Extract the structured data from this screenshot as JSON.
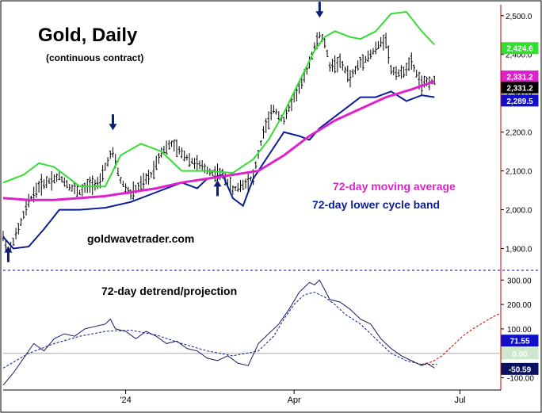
{
  "title": "Gold, Daily",
  "subtitle": "(continuous contract)",
  "watermark": "goldwavetrader.com",
  "colors": {
    "upper_band": "#33dd33",
    "moving_average": "#dd22cc",
    "lower_band": "#0a1e96",
    "price": "#000000",
    "detrend": "#0a1e96",
    "projection": "#cc0000",
    "divider": "#000080",
    "arrow": "#0a1e7a",
    "right_axis": "#cc0000"
  },
  "annotations": {
    "ma_label": "72-day moving average",
    "lower_band_label": "72-day lower cycle band",
    "detrend_label": "72-day detrend/projection"
  },
  "x_axis": {
    "ticks": [
      {
        "label": "'24",
        "day": 48
      },
      {
        "label": "Apr",
        "day": 114
      },
      {
        "label": "Jul",
        "day": 179
      }
    ]
  },
  "badges": {
    "upper": {
      "value": "2,424.6",
      "bg": "#33dd33",
      "fg": "#ffffff"
    },
    "ma": {
      "value": "2,331.2",
      "bg": "#dd22cc",
      "fg": "#ffffff"
    },
    "close": {
      "value": "2,331.2",
      "bg": "#000000",
      "fg": "#ffffff"
    },
    "lower": {
      "value": "2,289.5",
      "bg": "#1010cc",
      "fg": "#ffffff"
    },
    "upper_box_value": "100.00",
    "detrend_value": "71.55",
    "zero_value": "0.00",
    "low_value": "-50.59"
  },
  "chart_data": [
    {
      "type": "line",
      "name": "price_panel",
      "ylim": [
        1850,
        2520
      ],
      "y_ticks": [
        "1,900.0",
        "2,000.0",
        "2,100.0",
        "2,200.0",
        "2,300.0",
        "2,400.0",
        "2,500.0"
      ],
      "y_tick_values": [
        1900,
        2000,
        2100,
        2200,
        2300,
        2400,
        2500
      ],
      "xlim": [
        0,
        195
      ],
      "price_anchors": [
        [
          0,
          1930
        ],
        [
          2,
          1890
        ],
        [
          6,
          1950
        ],
        [
          10,
          2020
        ],
        [
          14,
          2060
        ],
        [
          18,
          2075
        ],
        [
          22,
          2085
        ],
        [
          26,
          2060
        ],
        [
          30,
          2045
        ],
        [
          34,
          2065
        ],
        [
          38,
          2070
        ],
        [
          40,
          2110
        ],
        [
          42,
          2140
        ],
        [
          43,
          2145
        ],
        [
          46,
          2075
        ],
        [
          50,
          2040
        ],
        [
          54,
          2065
        ],
        [
          58,
          2090
        ],
        [
          62,
          2150
        ],
        [
          66,
          2170
        ],
        [
          70,
          2145
        ],
        [
          74,
          2125
        ],
        [
          78,
          2110
        ],
        [
          82,
          2095
        ],
        [
          86,
          2090
        ],
        [
          90,
          2050
        ],
        [
          94,
          2065
        ],
        [
          98,
          2085
        ],
        [
          102,
          2200
        ],
        [
          106,
          2260
        ],
        [
          110,
          2230
        ],
        [
          114,
          2290
        ],
        [
          118,
          2340
        ],
        [
          122,
          2420
        ],
        [
          124,
          2450
        ],
        [
          126,
          2430
        ],
        [
          128,
          2370
        ],
        [
          132,
          2380
        ],
        [
          136,
          2340
        ],
        [
          140,
          2380
        ],
        [
          144,
          2400
        ],
        [
          148,
          2430
        ],
        [
          150,
          2440
        ],
        [
          152,
          2360
        ],
        [
          156,
          2350
        ],
        [
          160,
          2380
        ],
        [
          164,
          2320
        ],
        [
          166,
          2330
        ],
        [
          169,
          2331
        ]
      ],
      "series": [
        {
          "name": "72-day upper cycle band",
          "key": "upper",
          "x": [
            0,
            8,
            14,
            20,
            30,
            40,
            46,
            54,
            62,
            70,
            80,
            90,
            98,
            104,
            110,
            116,
            122,
            126,
            130,
            136,
            140,
            146,
            152,
            158,
            164,
            169
          ],
          "values": [
            2070,
            2090,
            2120,
            2110,
            2060,
            2060,
            2140,
            2170,
            2150,
            2100,
            2100,
            2095,
            2130,
            2180,
            2250,
            2330,
            2410,
            2445,
            2460,
            2445,
            2440,
            2460,
            2505,
            2510,
            2460,
            2425
          ]
        },
        {
          "name": "72-day moving average",
          "key": "ma",
          "x": [
            0,
            10,
            20,
            30,
            40,
            50,
            60,
            70,
            80,
            90,
            100,
            110,
            120,
            130,
            140,
            150,
            160,
            169
          ],
          "values": [
            2030,
            2025,
            2025,
            2030,
            2035,
            2045,
            2055,
            2070,
            2080,
            2090,
            2100,
            2140,
            2190,
            2230,
            2260,
            2290,
            2310,
            2331
          ]
        },
        {
          "name": "72-day lower cycle band",
          "key": "lower",
          "x": [
            0,
            4,
            10,
            16,
            22,
            30,
            40,
            50,
            60,
            70,
            76,
            80,
            86,
            90,
            94,
            98,
            104,
            110,
            116,
            120,
            124,
            130,
            136,
            140,
            146,
            152,
            158,
            164,
            169
          ],
          "values": [
            1930,
            1900,
            1905,
            1950,
            2000,
            2000,
            2005,
            2020,
            2045,
            2070,
            2055,
            2080,
            2090,
            2030,
            2010,
            2080,
            2140,
            2200,
            2190,
            2180,
            2210,
            2240,
            2270,
            2290,
            2290,
            2305,
            2280,
            2295,
            2290
          ]
        }
      ],
      "markers": [
        {
          "type": "arrow_up",
          "x": 2,
          "y": 1865
        },
        {
          "type": "arrow_down",
          "x": 43,
          "y": 2205
        },
        {
          "type": "arrow_up",
          "x": 84,
          "y": 2035
        },
        {
          "type": "arrow_down",
          "x": 124,
          "y": 2495
        }
      ]
    },
    {
      "type": "line",
      "name": "detrend_panel",
      "ylim": [
        -150,
        330
      ],
      "y_ticks": [
        "-100.00",
        "100.00",
        "200.00",
        "300.00"
      ],
      "y_tick_values": [
        -100,
        100,
        200,
        300
      ],
      "zero_line": 0,
      "series": [
        {
          "name": "72-day detrend",
          "key": "detrend",
          "x": [
            0,
            4,
            8,
            12,
            16,
            20,
            24,
            28,
            32,
            36,
            40,
            42,
            44,
            48,
            52,
            56,
            60,
            64,
            68,
            72,
            76,
            80,
            84,
            88,
            92,
            96,
            100,
            104,
            108,
            112,
            116,
            118,
            120,
            122,
            124,
            126,
            128,
            132,
            136,
            140,
            144,
            148,
            152,
            156,
            160,
            164,
            166,
            169
          ],
          "values": [
            -130,
            -80,
            -20,
            40,
            10,
            60,
            80,
            70,
            100,
            110,
            120,
            140,
            100,
            90,
            60,
            90,
            70,
            40,
            50,
            20,
            10,
            -20,
            -30,
            -10,
            -40,
            -50,
            40,
            80,
            120,
            180,
            250,
            270,
            290,
            280,
            300,
            260,
            220,
            210,
            180,
            140,
            120,
            60,
            20,
            -10,
            -30,
            -50,
            -40,
            -60
          ]
        },
        {
          "name": "72-day cycle",
          "key": "cycle",
          "x": [
            0,
            10,
            20,
            30,
            40,
            50,
            60,
            70,
            80,
            90,
            100,
            106,
            110,
            114,
            118,
            122,
            126,
            130,
            134,
            140,
            146,
            152,
            158,
            164,
            170
          ],
          "values": [
            -60,
            0,
            40,
            70,
            90,
            95,
            75,
            40,
            10,
            -10,
            10,
            70,
            140,
            200,
            240,
            250,
            230,
            200,
            160,
            120,
            60,
            0,
            -30,
            -45,
            -45
          ]
        },
        {
          "name": "72-day projection",
          "key": "projection",
          "x": [
            164,
            168,
            172,
            176,
            180,
            184,
            188,
            192,
            195
          ],
          "values": [
            -45,
            -35,
            -10,
            30,
            70,
            100,
            125,
            150,
            165
          ]
        }
      ]
    }
  ]
}
